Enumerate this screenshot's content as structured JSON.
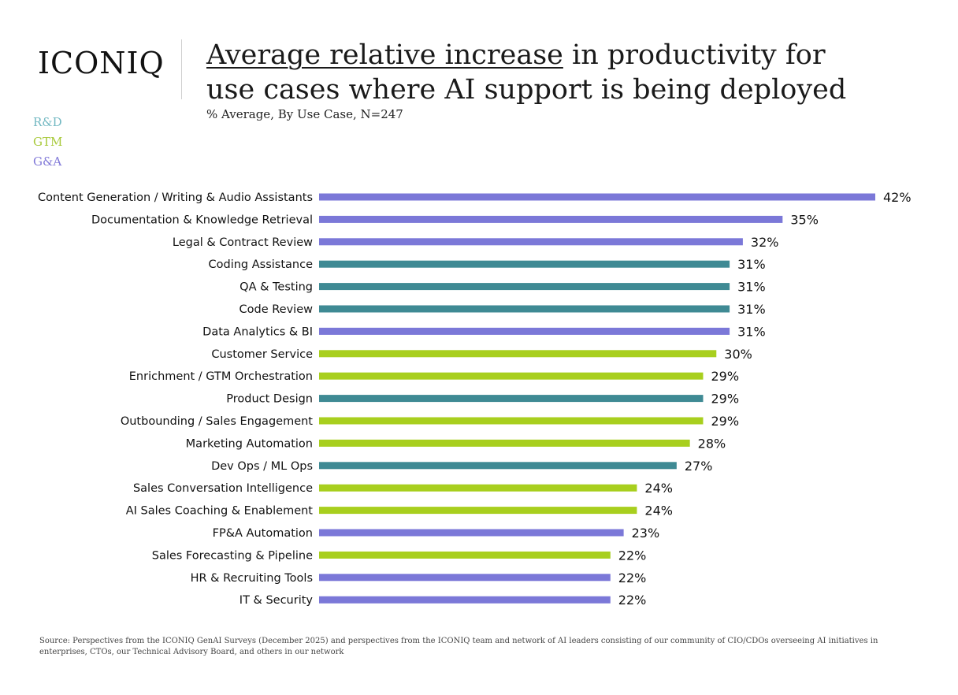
{
  "logo": "ICONIQ",
  "title": {
    "underlined_part": "Average relative increase",
    "rest_line1": " in productivity for",
    "line2": "use cases where AI support is being deployed"
  },
  "subtitle": "% Average, By Use Case, N=247",
  "legend": [
    {
      "label": "R&D",
      "color": "#72b8c2"
    },
    {
      "label": "GTM",
      "color": "#a8c93a"
    },
    {
      "label": "G&A",
      "color": "#8078d8"
    }
  ],
  "colors": {
    "rd": "#3f8a94",
    "gtm": "#a8cf1e",
    "ga": "#7b78d8"
  },
  "chart_data": {
    "type": "bar",
    "orientation": "horizontal",
    "unit": "%",
    "xlim": [
      0,
      42
    ],
    "grid": false,
    "legend_placement": "top-left",
    "bars": [
      {
        "label": "Content Generation / Writing & Audio Assistants",
        "value": 42,
        "value_label": "42%",
        "group": "ga"
      },
      {
        "label": "Documentation & Knowledge Retrieval",
        "value": 35,
        "value_label": "35%",
        "group": "ga"
      },
      {
        "label": "Legal & Contract Review",
        "value": 32,
        "value_label": "32%",
        "group": "ga"
      },
      {
        "label": "Coding Assistance",
        "value": 31,
        "value_label": "31%",
        "group": "rd"
      },
      {
        "label": "QA & Testing",
        "value": 31,
        "value_label": "31%",
        "group": "rd"
      },
      {
        "label": "Code Review",
        "value": 31,
        "value_label": "31%",
        "group": "rd"
      },
      {
        "label": "Data Analytics & BI",
        "value": 31,
        "value_label": "31%",
        "group": "ga"
      },
      {
        "label": "Customer Service",
        "value": 30,
        "value_label": "30%",
        "group": "gtm"
      },
      {
        "label": "Enrichment / GTM Orchestration",
        "value": 29,
        "value_label": "29%",
        "group": "gtm"
      },
      {
        "label": "Product Design",
        "value": 29,
        "value_label": "29%",
        "group": "rd"
      },
      {
        "label": "Outbounding / Sales Engagement",
        "value": 29,
        "value_label": "29%",
        "group": "gtm"
      },
      {
        "label": "Marketing Automation",
        "value": 28,
        "value_label": "28%",
        "group": "gtm"
      },
      {
        "label": "Dev Ops / ML Ops",
        "value": 27,
        "value_label": "27%",
        "group": "rd"
      },
      {
        "label": "Sales Conversation Intelligence",
        "value": 24,
        "value_label": "24%",
        "group": "gtm"
      },
      {
        "label": "AI Sales Coaching & Enablement",
        "value": 24,
        "value_label": "24%",
        "group": "gtm"
      },
      {
        "label": "FP&A Automation",
        "value": 23,
        "value_label": "23%",
        "group": "ga"
      },
      {
        "label": "Sales Forecasting & Pipeline",
        "value": 22,
        "value_label": "22%",
        "group": "gtm"
      },
      {
        "label": "HR & Recruiting Tools",
        "value": 22,
        "value_label": "22%",
        "group": "ga"
      },
      {
        "label": "IT & Security",
        "value": 22,
        "value_label": "22%",
        "group": "ga"
      }
    ]
  },
  "source": "Source: Perspectives from the ICONIQ GenAI Surveys (December 2025) and perspectives from the ICONIQ team and network of AI leaders consisting of our community of CIO/CDOs overseeing AI initiatives in enterprises, CTOs, our Technical Advisory Board, and others in our network"
}
